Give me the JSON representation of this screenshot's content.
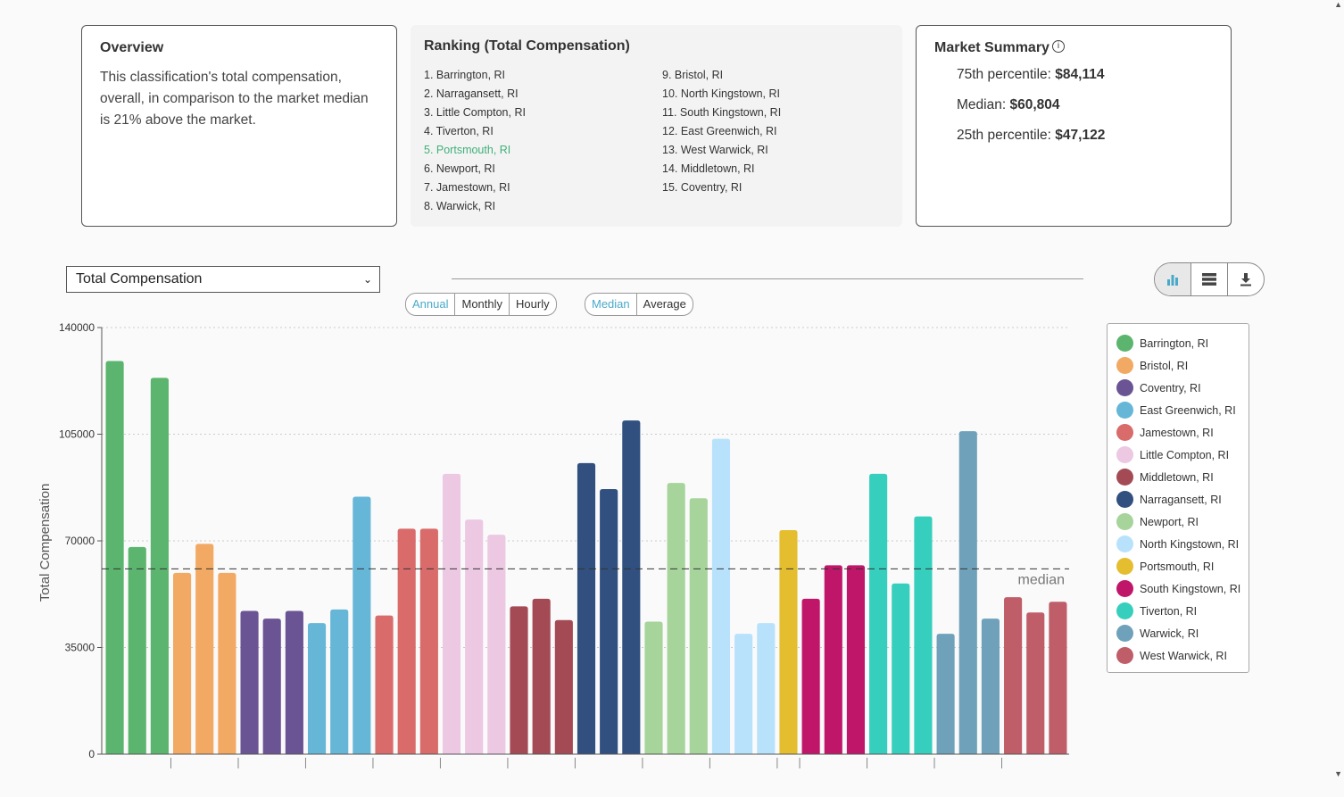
{
  "overview": {
    "title": "Overview",
    "text": "This classification's total compensation, overall, in comparison to the market median is 21% above the market."
  },
  "ranking": {
    "title": "Ranking (Total Compensation)",
    "highlight_index": 4,
    "items": [
      "1. Barrington, RI",
      "2. Narragansett, RI",
      "3. Little Compton, RI",
      "4. Tiverton, RI",
      "5. Portsmouth, RI",
      "6. Newport, RI",
      "7. Jamestown, RI",
      "8. Warwick, RI",
      "9. Bristol, RI",
      "10. North Kingstown, RI",
      "11. South Kingstown, RI",
      "12. East Greenwich, RI",
      "13. West Warwick, RI",
      "14. Middletown, RI",
      "15. Coventry, RI"
    ]
  },
  "market_summary": {
    "title": "Market Summary",
    "info_icon": "info-icon",
    "rows": [
      {
        "label": "75th percentile: ",
        "value": "$84,114"
      },
      {
        "label": "Median: ",
        "value": "$60,804"
      },
      {
        "label": "25th percentile: ",
        "value": "$47,122"
      }
    ]
  },
  "controls": {
    "metric_select": "Total Compensation",
    "period_options": [
      "Annual",
      "Monthly",
      "Hourly"
    ],
    "period_active": "Annual",
    "stat_options": [
      "Median",
      "Average"
    ],
    "stat_active": "Median",
    "view_buttons": [
      "bar-chart-icon",
      "table-list-icon",
      "download-icon"
    ],
    "active_view": "bar-chart-icon"
  },
  "chart_data": {
    "type": "bar",
    "ylabel": "Total Compensation",
    "ylim": [
      0,
      140000
    ],
    "yticks": [
      0,
      35000,
      70000,
      105000,
      140000
    ],
    "grid": true,
    "median_line": {
      "value": 60804,
      "label": "median"
    },
    "legend_position": "right",
    "series": [
      {
        "name": "Barrington, RI",
        "color": "#5bb56e",
        "values": [
          129000,
          68000,
          123500
        ]
      },
      {
        "name": "Bristol, RI",
        "color": "#f2a963",
        "values": [
          59500,
          69000,
          59500
        ]
      },
      {
        "name": "Coventry, RI",
        "color": "#6a5494",
        "values": [
          47000,
          44500,
          47000
        ]
      },
      {
        "name": "East Greenwich, RI",
        "color": "#66b6d8",
        "values": [
          43000,
          47500,
          84500
        ]
      },
      {
        "name": "Jamestown, RI",
        "color": "#d96b6b",
        "values": [
          45500,
          74000,
          74000
        ]
      },
      {
        "name": "Little Compton, RI",
        "color": "#ecc8e2",
        "values": [
          92000,
          77000,
          72000
        ]
      },
      {
        "name": "Middletown, RI",
        "color": "#a34a55",
        "values": [
          48500,
          51000,
          44000
        ]
      },
      {
        "name": "Narragansett, RI",
        "color": "#31507f",
        "values": [
          95500,
          87000,
          109500
        ]
      },
      {
        "name": "Newport, RI",
        "color": "#a6d49b",
        "values": [
          43500,
          89000,
          84000
        ]
      },
      {
        "name": "North Kingstown, RI",
        "color": "#b8e2fb",
        "values": [
          103500,
          39500,
          43000
        ]
      },
      {
        "name": "Portsmouth, RI",
        "color": "#e4be2e",
        "values": [
          73500
        ]
      },
      {
        "name": "South Kingstown, RI",
        "color": "#c0166a",
        "values": [
          51000,
          62000,
          62000
        ]
      },
      {
        "name": "Tiverton, RI",
        "color": "#36cfbd",
        "values": [
          92000,
          56000,
          78000
        ]
      },
      {
        "name": "Warwick, RI",
        "color": "#6fa2ba",
        "values": [
          39500,
          106000,
          44500
        ]
      },
      {
        "name": "West Warwick, RI",
        "color": "#bf5e69",
        "values": [
          51500,
          46500,
          50000
        ]
      }
    ]
  }
}
